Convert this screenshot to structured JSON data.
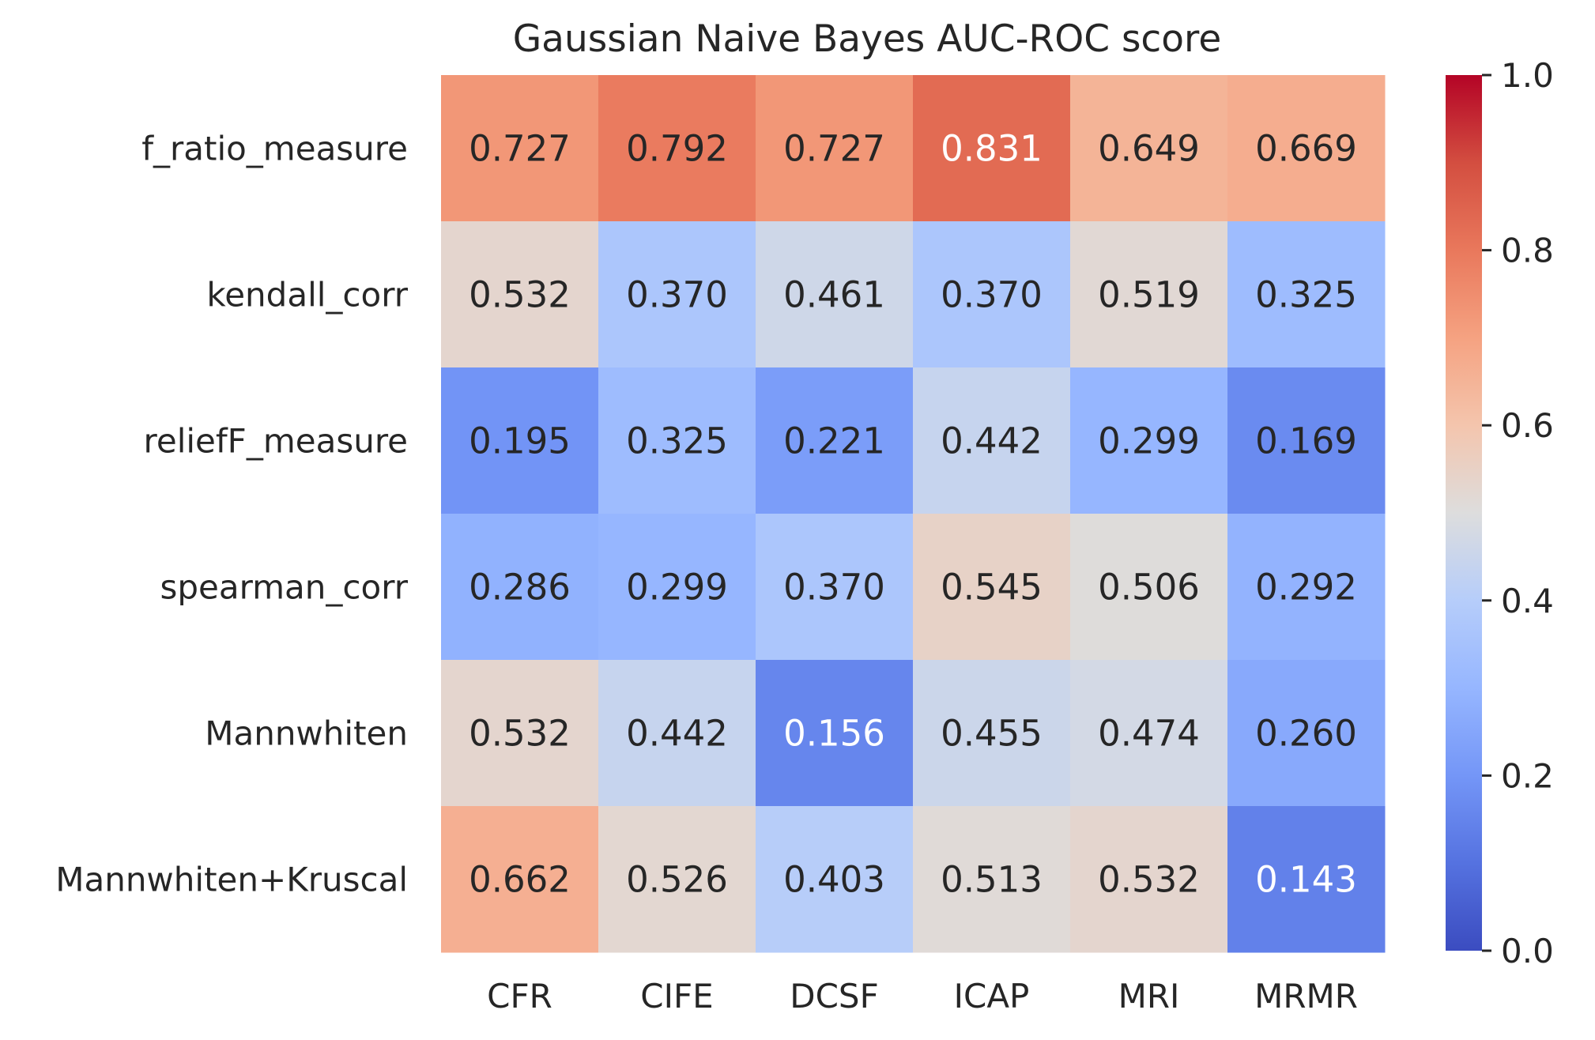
{
  "chart_data": {
    "type": "heatmap",
    "title": "Gaussian Naive Bayes AUC-ROC score",
    "xlabel": "",
    "ylabel": "",
    "columns": [
      "CFR",
      "CIFE",
      "DCSF",
      "ICAP",
      "MRI",
      "MRMR"
    ],
    "rows": [
      "f_ratio_measure",
      "kendall_corr",
      "reliefF_measure",
      "spearman_corr",
      "Mannwhiten",
      "Mannwhiten+Kruscal"
    ],
    "values": [
      [
        0.727,
        0.792,
        0.727,
        0.831,
        0.649,
        0.669
      ],
      [
        0.532,
        0.37,
        0.461,
        0.37,
        0.519,
        0.325
      ],
      [
        0.195,
        0.325,
        0.221,
        0.442,
        0.299,
        0.169
      ],
      [
        0.286,
        0.299,
        0.37,
        0.545,
        0.506,
        0.292
      ],
      [
        0.532,
        0.442,
        0.156,
        0.455,
        0.474,
        0.26
      ],
      [
        0.662,
        0.526,
        0.403,
        0.513,
        0.532,
        0.143
      ]
    ],
    "value_format": "3 decimals",
    "colormap": "coolwarm",
    "vmin": 0.0,
    "vmax": 1.0,
    "colorbar": {
      "ticks": [
        "0.0",
        "0.2",
        "0.4",
        "0.6",
        "0.8",
        "1.0"
      ],
      "placement": "right"
    },
    "grid": false
  }
}
